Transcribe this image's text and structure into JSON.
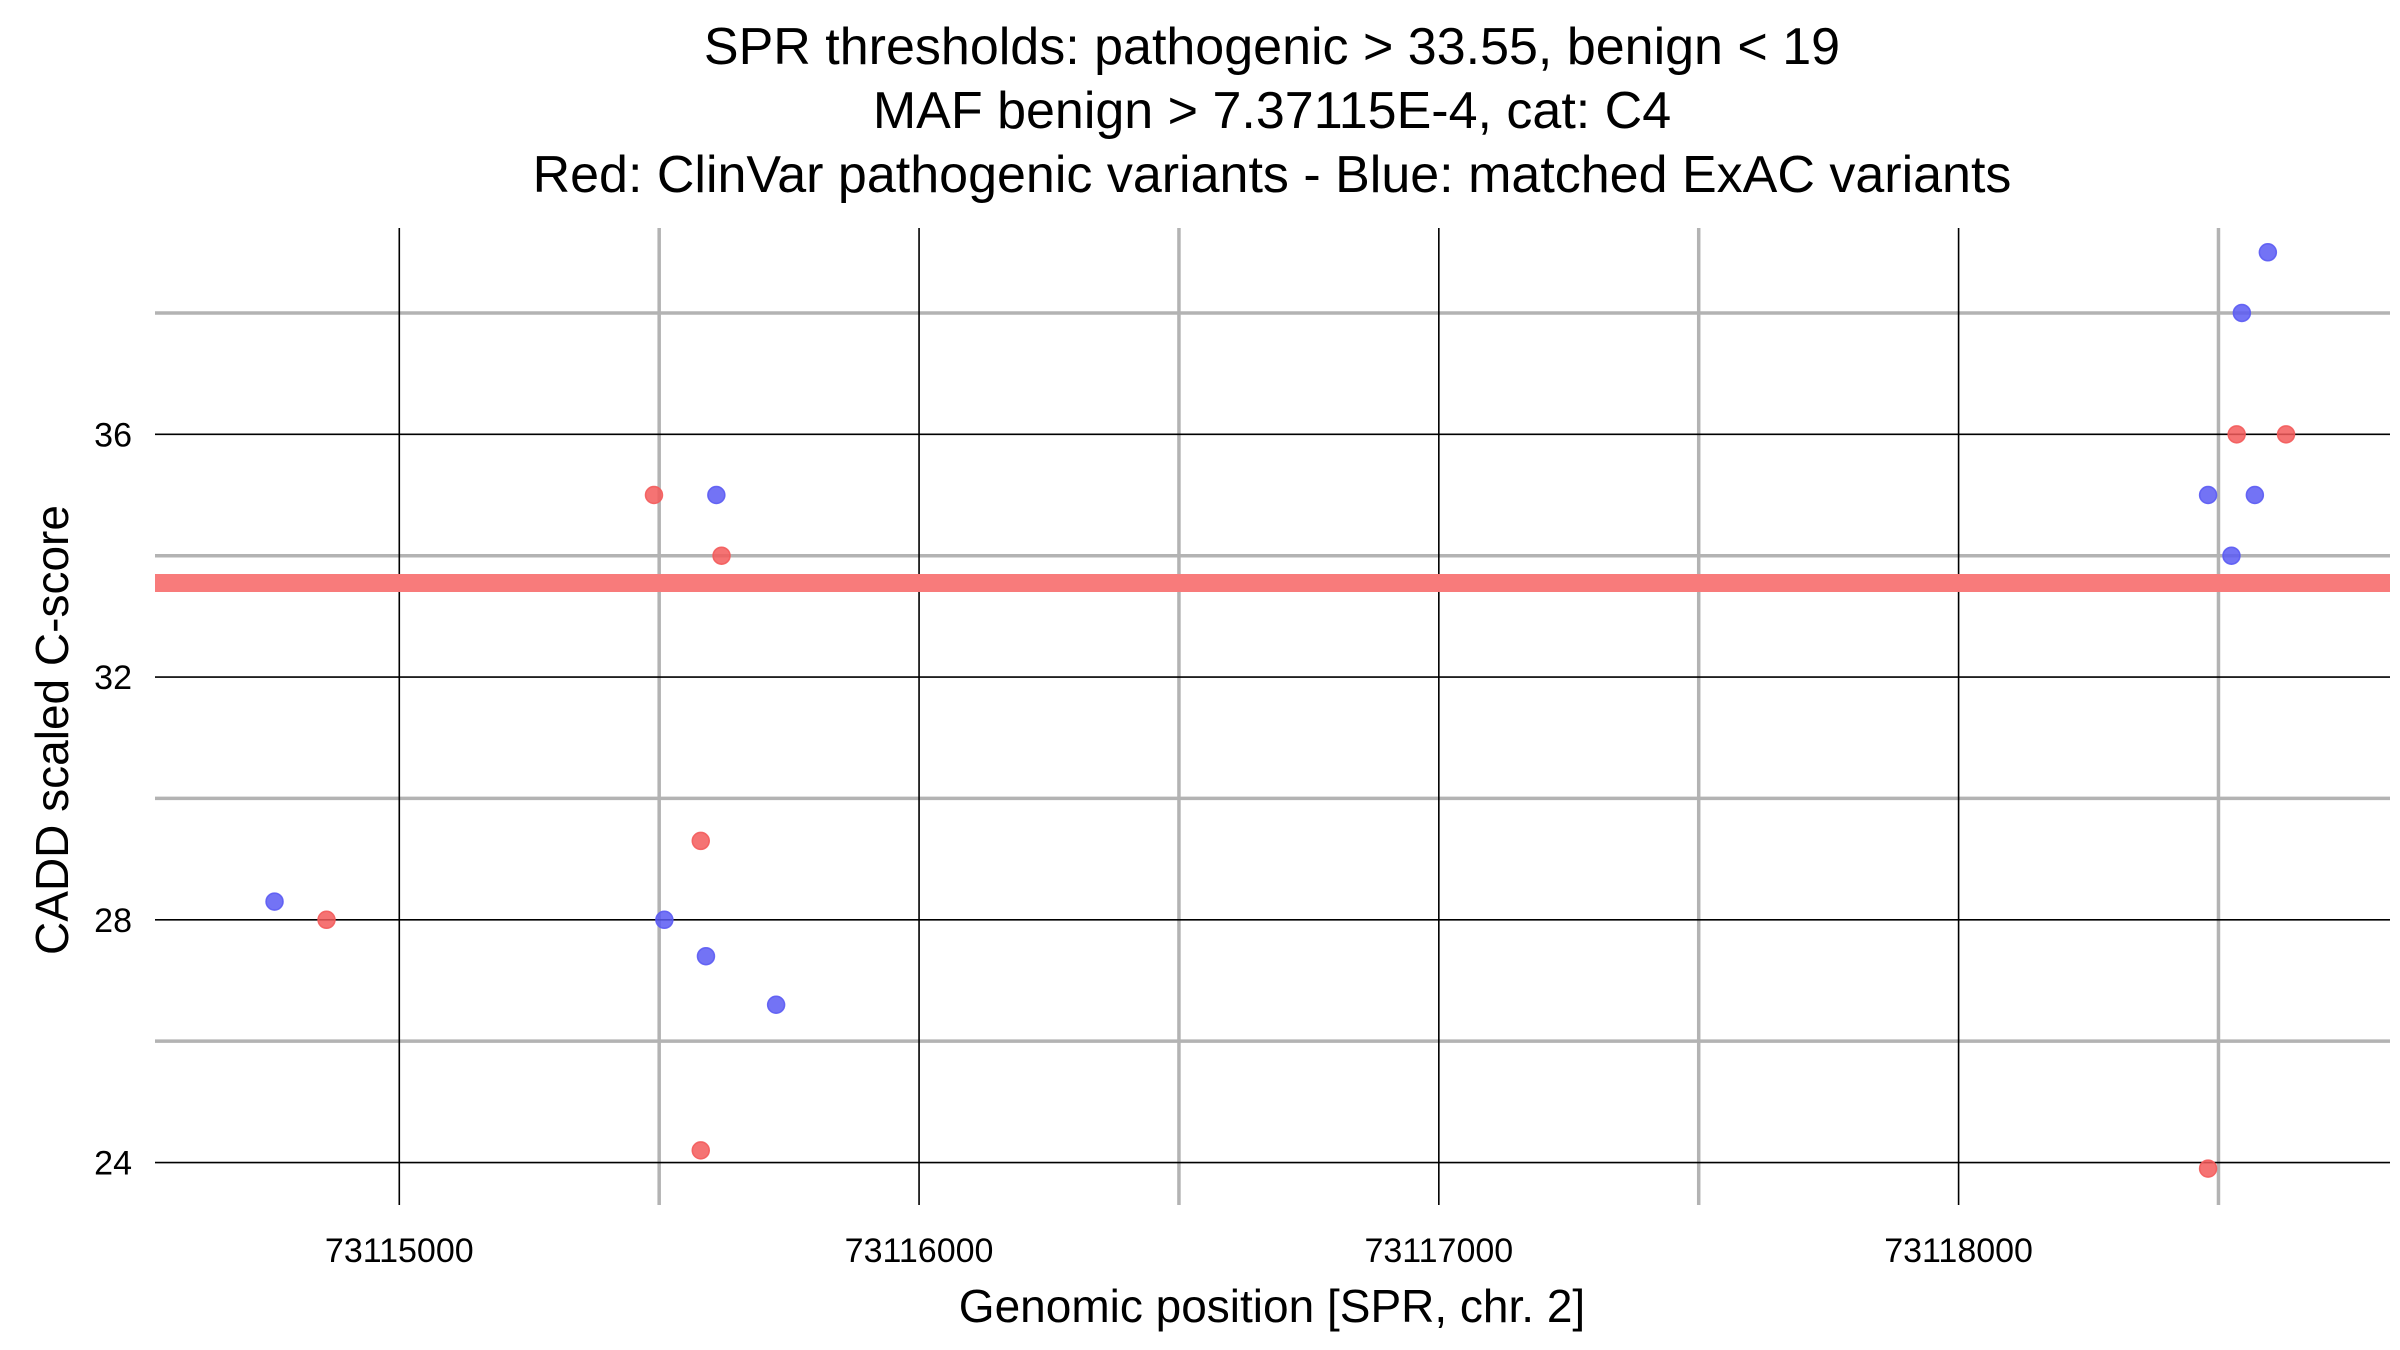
{
  "chart_data": {
    "type": "scatter",
    "title_lines": [
      "SPR thresholds: pathogenic > 33.55, benign < 19",
      "MAF benign > 7.37115E-4, cat: C4",
      "Red: ClinVar pathogenic variants - Blue: matched ExAC variants"
    ],
    "xlabel": "Genomic position [SPR, chr. 2]",
    "ylabel": "CADD scaled C-score",
    "xlim": [
      73114530,
      73118830
    ],
    "ylim": [
      23.3,
      39.4
    ],
    "x_ticks": [
      73115000,
      73116000,
      73117000,
      73118000
    ],
    "x_tick_labels": [
      "73115000",
      "73116000",
      "73117000",
      "73118000"
    ],
    "x_minor_ticks": [
      73115500,
      73116500,
      73117500,
      73118500
    ],
    "y_ticks": [
      24,
      28,
      32,
      36
    ],
    "y_tick_labels": [
      "24",
      "28",
      "32",
      "36"
    ],
    "y_minor_ticks": [
      26,
      30,
      34,
      38
    ],
    "grid": true,
    "threshold_line": {
      "y": 33.55,
      "color": "#f87b7b"
    },
    "series": [
      {
        "color": "#f35b5b",
        "points": [
          {
            "x": 73114860,
            "y": 28.0
          },
          {
            "x": 73115490,
            "y": 35.0
          },
          {
            "x": 73115620,
            "y": 34.0
          },
          {
            "x": 73115580,
            "y": 29.3
          },
          {
            "x": 73115580,
            "y": 24.2
          },
          {
            "x": 73118480,
            "y": 23.9
          },
          {
            "x": 73118535,
            "y": 36.0
          },
          {
            "x": 73118630,
            "y": 36.0
          }
        ]
      },
      {
        "color": "#5b5bf3",
        "points": [
          {
            "x": 73114760,
            "y": 28.3
          },
          {
            "x": 73115510,
            "y": 28.0
          },
          {
            "x": 73115610,
            "y": 35.0
          },
          {
            "x": 73115590,
            "y": 27.4
          },
          {
            "x": 73115725,
            "y": 26.6
          },
          {
            "x": 73118480,
            "y": 35.0
          },
          {
            "x": 73118525,
            "y": 34.0
          },
          {
            "x": 73118545,
            "y": 38.0
          },
          {
            "x": 73118570,
            "y": 35.0
          },
          {
            "x": 73118595,
            "y": 39.0
          }
        ]
      }
    ]
  }
}
